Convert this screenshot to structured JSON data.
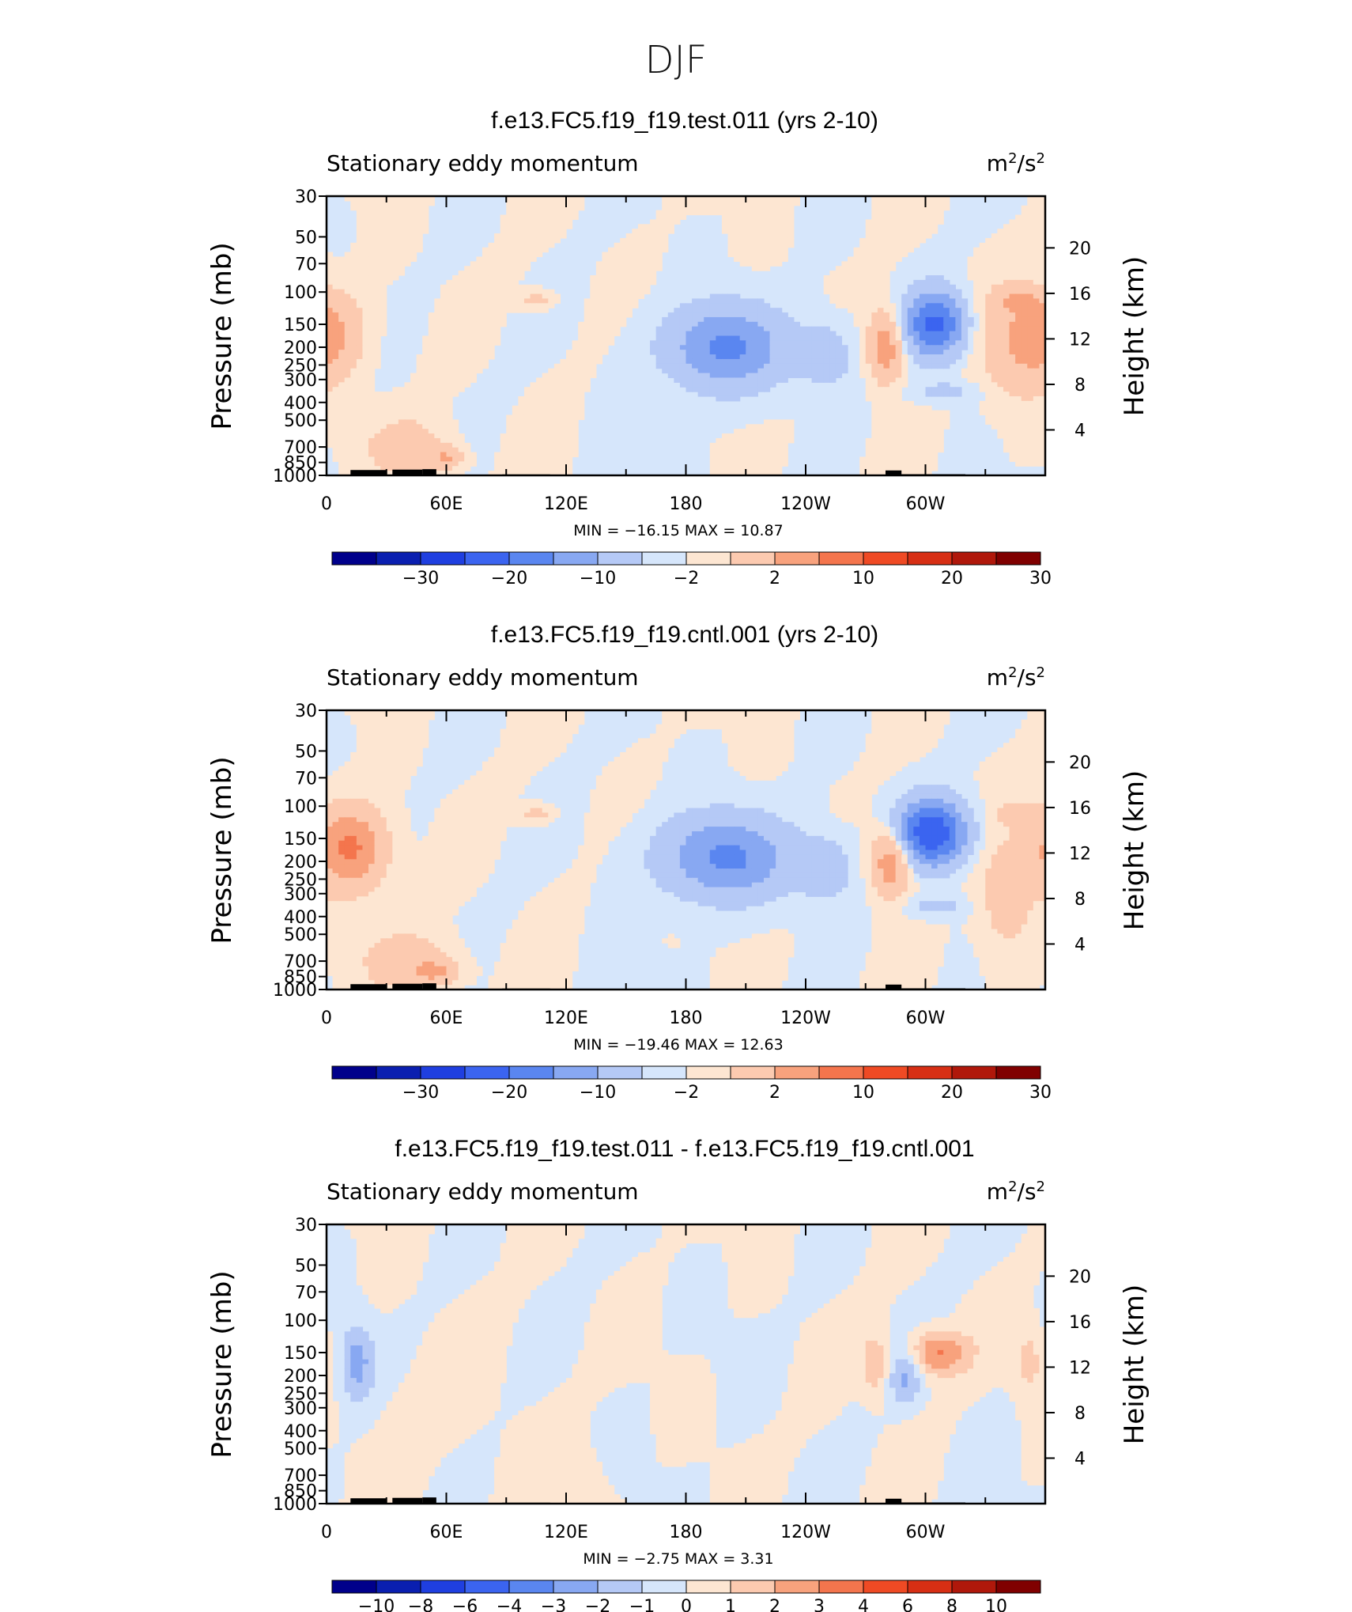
{
  "figure": {
    "title": "DJF"
  },
  "colors": {
    "palette": [
      "#00008b",
      "#0a1fb0",
      "#1f3fe0",
      "#3b64f0",
      "#5a86f0",
      "#88a8f2",
      "#b5c9f6",
      "#d6e6fb",
      "#fde6d2",
      "#fccab0",
      "#f8a27d",
      "#f4754d",
      "#ef4a24",
      "#d72f14",
      "#b0180b",
      "#800000"
    ],
    "land": "#000000",
    "frame": "#000000"
  },
  "chart_data": [
    {
      "type": "heatmap",
      "title": "f.e13.FC5.f19_f19.test.011 (yrs 2-10)",
      "left_label": "Stationary eddy momentum",
      "units": "m²/s²",
      "units_base": "m",
      "units_mid": "/s",
      "units_exp": "2",
      "ylabel": "Pressure (mb)",
      "ylabel_right": "Height (km)",
      "x_ticks": [
        "0",
        "60E",
        "120E",
        "180",
        "120W",
        "60W"
      ],
      "x_tick_lons": [
        0,
        60,
        120,
        180,
        240,
        300
      ],
      "xlim": [
        0,
        357
      ],
      "y_ticks": [
        30,
        50,
        70,
        100,
        150,
        200,
        250,
        300,
        400,
        500,
        700,
        850,
        1000
      ],
      "ylim": [
        30,
        1000
      ],
      "height_ticks": [
        4,
        8,
        12,
        16,
        20
      ],
      "min_max": {
        "min_label": "MIN =",
        "min": "−16.15",
        "max_label": "MAX =",
        "max": "10.87"
      },
      "colorbar_labels": [
        "−30",
        "−20",
        "−10",
        "−2",
        "2",
        "10",
        "20",
        "30"
      ],
      "colorbar_levels": [
        -35,
        -30,
        -25,
        -20,
        -15,
        -10,
        -6,
        -2,
        0,
        2,
        6,
        10,
        15,
        20,
        25,
        30,
        35
      ],
      "features": [
        {
          "lon": 0,
          "p": 170,
          "v": 7,
          "sx": 12,
          "sy": 0.35
        },
        {
          "lon": 40,
          "p": 700,
          "v": 4,
          "sx": 14,
          "sy": 0.25
        },
        {
          "lon": 60,
          "p": 800,
          "v": 6,
          "sx": 6,
          "sy": 0.1
        },
        {
          "lon": 105,
          "p": 110,
          "v": 3.5,
          "sx": 6,
          "sy": 0.08
        },
        {
          "lon": 200,
          "p": 200,
          "v": -11,
          "sx": 20,
          "sy": 0.35
        },
        {
          "lon": 250,
          "p": 220,
          "v": -4,
          "sx": 10,
          "sy": 0.3
        },
        {
          "lon": 280,
          "p": 200,
          "v": 9,
          "sx": 6,
          "sy": 0.3
        },
        {
          "lon": 305,
          "p": 150,
          "v": -16,
          "sx": 10,
          "sy": 0.28
        },
        {
          "lon": 310,
          "p": 350,
          "v": -3,
          "sx": 12,
          "sy": 0.1
        },
        {
          "lon": 345,
          "p": 200,
          "v": 4,
          "sx": 14,
          "sy": 0.5
        },
        {
          "lon": 345,
          "p": 110,
          "v": 4,
          "sx": 8,
          "sy": 0.1
        }
      ]
    },
    {
      "type": "heatmap",
      "title": "f.e13.FC5.f19_f19.cntl.001 (yrs 2-10)",
      "left_label": "Stationary eddy momentum",
      "units": "m²/s²",
      "units_base": "m",
      "units_mid": "/s",
      "units_exp": "2",
      "ylabel": "Pressure (mb)",
      "ylabel_right": "Height (km)",
      "x_ticks": [
        "0",
        "60E",
        "120E",
        "180",
        "120W",
        "60W"
      ],
      "x_tick_lons": [
        0,
        60,
        120,
        180,
        240,
        300
      ],
      "xlim": [
        0,
        357
      ],
      "y_ticks": [
        30,
        50,
        70,
        100,
        150,
        200,
        250,
        300,
        400,
        500,
        700,
        850,
        1000
      ],
      "ylim": [
        30,
        1000
      ],
      "height_ticks": [
        4,
        8,
        12,
        16,
        20
      ],
      "min_max": {
        "min_label": "MIN =",
        "min": "−19.46",
        "max_label": "MAX =",
        "max": "12.63"
      },
      "colorbar_labels": [
        "−30",
        "−20",
        "−10",
        "−2",
        "2",
        "10",
        "20",
        "30"
      ],
      "colorbar_levels": [
        -35,
        -30,
        -25,
        -20,
        -15,
        -10,
        -6,
        -2,
        0,
        2,
        6,
        10,
        15,
        20,
        25,
        30,
        35
      ],
      "features": [
        {
          "lon": 12,
          "p": 170,
          "v": 11,
          "sx": 12,
          "sy": 0.35
        },
        {
          "lon": 40,
          "p": 700,
          "v": 4,
          "sx": 16,
          "sy": 0.25
        },
        {
          "lon": 55,
          "p": 800,
          "v": 6,
          "sx": 8,
          "sy": 0.1
        },
        {
          "lon": 105,
          "p": 110,
          "v": 3.5,
          "sx": 6,
          "sy": 0.08
        },
        {
          "lon": 200,
          "p": 190,
          "v": -11,
          "sx": 22,
          "sy": 0.35
        },
        {
          "lon": 250,
          "p": 220,
          "v": -4,
          "sx": 10,
          "sy": 0.3
        },
        {
          "lon": 283,
          "p": 200,
          "v": 10,
          "sx": 7,
          "sy": 0.3
        },
        {
          "lon": 303,
          "p": 140,
          "v": -19,
          "sx": 12,
          "sy": 0.28
        },
        {
          "lon": 305,
          "p": 350,
          "v": -3,
          "sx": 12,
          "sy": 0.1
        },
        {
          "lon": 340,
          "p": 300,
          "v": 4,
          "sx": 10,
          "sy": 0.5
        },
        {
          "lon": 348,
          "p": 110,
          "v": 4,
          "sx": 8,
          "sy": 0.1
        }
      ]
    },
    {
      "type": "heatmap",
      "title": "f.e13.FC5.f19_f19.test.011 - f.e13.FC5.f19_f19.cntl.001",
      "left_label": "Stationary eddy momentum",
      "units": "m²/s²",
      "units_base": "m",
      "units_mid": "/s",
      "units_exp": "2",
      "ylabel": "Pressure (mb)",
      "ylabel_right": "Height (km)",
      "x_ticks": [
        "0",
        "60E",
        "120E",
        "180",
        "120W",
        "60W"
      ],
      "x_tick_lons": [
        0,
        60,
        120,
        180,
        240,
        300
      ],
      "xlim": [
        0,
        357
      ],
      "y_ticks": [
        30,
        50,
        70,
        100,
        150,
        200,
        250,
        300,
        400,
        500,
        700,
        850,
        1000
      ],
      "ylim": [
        30,
        1000
      ],
      "height_ticks": [
        4,
        8,
        12,
        16,
        20
      ],
      "min_max": {
        "min_label": "MIN =",
        "min": "−2.75",
        "max_label": "MAX =",
        "max": "3.31"
      },
      "colorbar_labels": [
        "−10",
        "−8",
        "−6",
        "−4",
        "−3",
        "−2",
        "−1",
        "0",
        "1",
        "2",
        "3",
        "4",
        "6",
        "8",
        "10"
      ],
      "colorbar_levels": [
        -12,
        -10,
        -8,
        -6,
        -4,
        -3,
        -2,
        -1,
        0,
        1,
        2,
        3,
        4,
        6,
        8,
        10,
        12
      ],
      "features": [
        {
          "lon": 15,
          "p": 170,
          "v": -2.5,
          "sx": 6,
          "sy": 0.35
        },
        {
          "lon": 55,
          "p": 300,
          "v": 0.5,
          "sx": 25,
          "sy": 0.6
        },
        {
          "lon": 120,
          "p": 700,
          "v": 0.6,
          "sx": 15,
          "sy": 0.3
        },
        {
          "lon": 275,
          "p": 180,
          "v": 2,
          "sx": 5,
          "sy": 0.3
        },
        {
          "lon": 290,
          "p": 200,
          "v": -2.2,
          "sx": 6,
          "sy": 0.25
        },
        {
          "lon": 305,
          "p": 150,
          "v": 3.3,
          "sx": 11,
          "sy": 0.2
        },
        {
          "lon": 352,
          "p": 170,
          "v": 1.5,
          "sx": 5,
          "sy": 0.3
        }
      ]
    }
  ]
}
